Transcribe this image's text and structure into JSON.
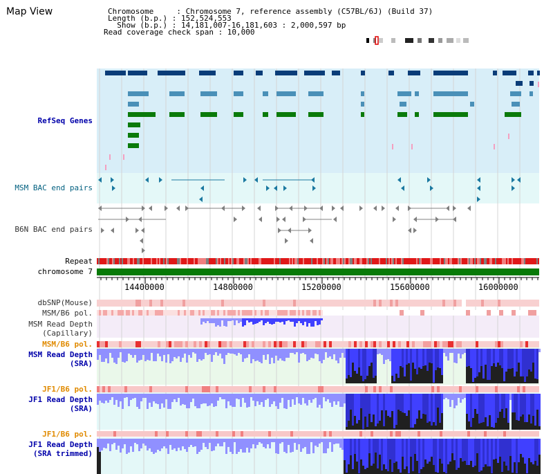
{
  "title": "Map View",
  "info": {
    "lines": [
      "Chromosome     : Chromosome 7, reference assembly (C57BL/6J) (Build 37)",
      "Length (b.p.) : 152,524,553",
      "  Show (b.p.) : 14,181,007-16,181,603 : 2,000,597 bp",
      "Read coverage check span : 10,000"
    ]
  },
  "tracks": {
    "refseq": "RefSeq Genes",
    "msm_bac": "MSM BAC end pairs",
    "b6n_bac": "B6N BAC end pairs",
    "repeat": "Repeat",
    "chromosome": "chromosome 7",
    "dbsnp": "dbSNP(Mouse)",
    "msm_b6_pol_a": "MSM/B6 pol.",
    "msm_read_depth_cap_1": "MSM Read Depth",
    "msm_read_depth_cap_2": "(Capillary)",
    "msm_b6_pol_b": "MSM/B6 pol.",
    "msm_read_depth_sra_1": "MSM Read Depth",
    "msm_read_depth_sra_2": "(SRA)",
    "jf1_b6_pol_a": "JF1/B6 pol.",
    "jf1_read_depth_sra_1": "JF1 Read Depth",
    "jf1_read_depth_sra_2": "(SRA)",
    "jf1_b6_pol_b": "JF1/B6 pol.",
    "jf1_read_depth_trim_1": "JF1 Read Depth",
    "jf1_read_depth_trim_2": "(SRA trimmed)"
  },
  "axis": {
    "ticks": [
      {
        "label": "14400000",
        "value": 14400000
      },
      {
        "label": "14800000",
        "value": 14800000
      },
      {
        "label": "15200000",
        "value": 15200000
      },
      {
        "label": "15600000",
        "value": 15600000
      },
      {
        "label": "16000000",
        "value": 16000000
      }
    ],
    "start": 14181007,
    "end": 16181603
  },
  "colors": {
    "refseq_bg": "#d8eef8",
    "gene_navy": "#0a3c78",
    "gene_steel": "#4a90b8",
    "gene_green": "#0a7a0a",
    "pink_mark": "#f4a0c0",
    "msm_bg": "#e4f8f8",
    "teal_mark": "#1a78a0",
    "grey_mark": "#808080",
    "repeat_red": "#e01818",
    "chromosome_green": "#087a08",
    "snp_pink": "#f8c8c8",
    "depth_blue": "#4040ff",
    "depth_light": "#9090ff",
    "depth_dark": "#202020",
    "sra_bg": "#eaf8ea",
    "cap_bg": "#f4ecf8"
  }
}
